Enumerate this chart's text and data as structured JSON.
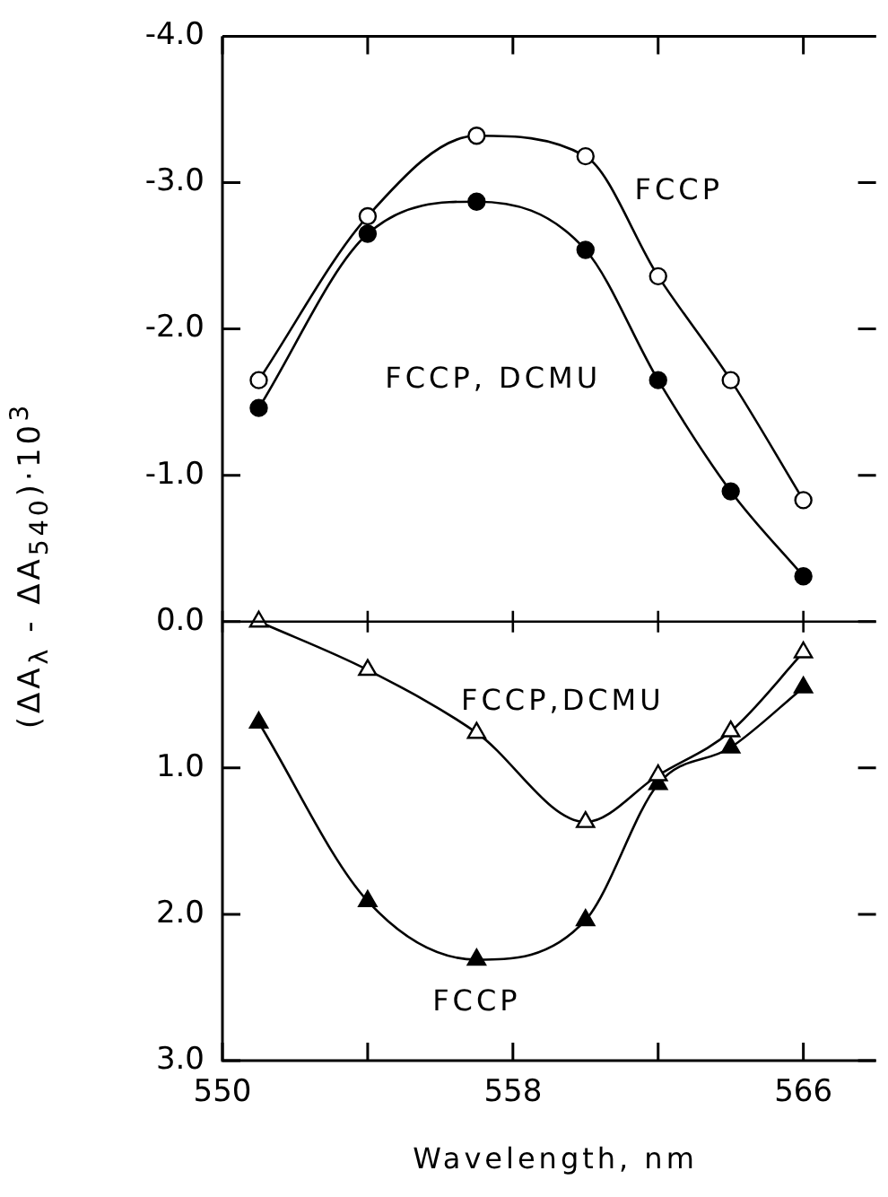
{
  "chart_data": {
    "type": "line",
    "xlabel": "Wavelength, nm",
    "ylabel": "(ΔA$_{λ}$ - ΔA$_{540}$)·10$^{3}$",
    "xlim": [
      550,
      568
    ],
    "xticks": [
      550,
      {
        "value": 554,
        "label": null
      },
      558,
      {
        "value": 562,
        "label": null
      },
      566
    ],
    "ylim": [
      3,
      -4
    ],
    "yticks": [
      {
        "value": -4,
        "label": "-4.0"
      },
      {
        "value": -3,
        "label": "-3.0"
      },
      {
        "value": -2,
        "label": "-2.0"
      },
      {
        "value": -1,
        "label": "-1.0"
      },
      {
        "value": 0,
        "label": "0.0"
      },
      {
        "value": 1,
        "label": "1.0"
      },
      {
        "value": 2,
        "label": "2.0"
      },
      {
        "value": 3,
        "label": "3.0"
      }
    ],
    "grid": false,
    "legend": false,
    "ref_lines": [
      {
        "axis": "y",
        "value": 0,
        "color": "#000000"
      }
    ],
    "series": [
      {
        "name": "FCCP",
        "color": "#000000",
        "colors": [
          "#ffffff",
          "#ffffff",
          "#ffffff",
          "#ffffff",
          "#ffffff",
          "#ffffff",
          "#ffffff"
        ],
        "marker": "circle",
        "x": [
          551,
          554,
          557,
          560,
          562,
          564,
          566
        ],
        "values": [
          -1.65,
          -2.77,
          -3.32,
          -3.18,
          -2.36,
          -1.65,
          -0.83
        ]
      },
      {
        "name": "FCCP, DCMU",
        "color": "#000000",
        "marker": "circle",
        "x": [
          551,
          554,
          557,
          560,
          562,
          564,
          566
        ],
        "values": [
          -1.46,
          -2.65,
          -2.87,
          -2.54,
          -1.65,
          -0.89,
          -0.31
        ]
      },
      {
        "name": "FCCP,DCMU",
        "color": "#000000",
        "colors": [
          "#ffffff",
          "#ffffff",
          "#ffffff",
          "#ffffff",
          "#ffffff",
          "#ffffff",
          "#ffffff"
        ],
        "marker": "triangle",
        "x": [
          551,
          554,
          557,
          560,
          562,
          564,
          566
        ],
        "values": [
          0.0,
          0.33,
          0.76,
          1.37,
          1.05,
          0.75,
          0.21
        ]
      },
      {
        "name": "FCCP",
        "color": "#000000",
        "marker": "triangle",
        "x": [
          551,
          554,
          557,
          560,
          562,
          564,
          566
        ],
        "values": [
          0.69,
          1.91,
          2.31,
          2.04,
          1.11,
          0.86,
          0.45
        ]
      }
    ]
  }
}
